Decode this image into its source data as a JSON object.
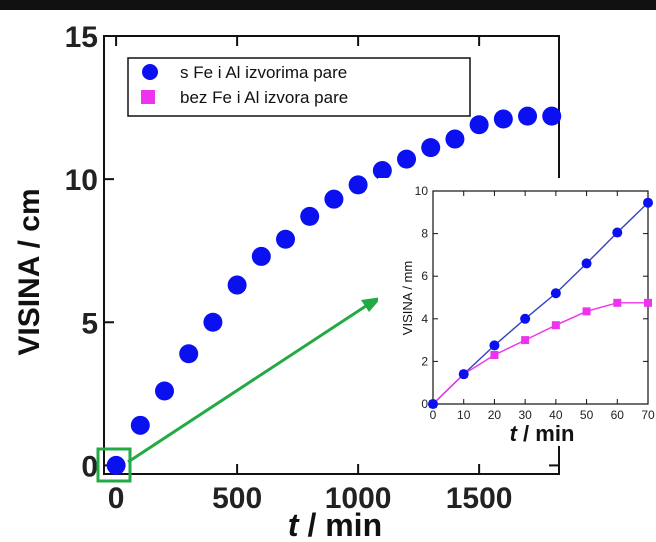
{
  "colors": {
    "series1": "#0a10f0",
    "series2": "#ee33ee",
    "arrow": "#22aa44",
    "topbar": "#111111",
    "inset_line": "#3344bb"
  },
  "chart_data": [
    {
      "type": "scatter",
      "xlabel_italic": "t",
      "xlabel_rest": " / min",
      "ylabel": "VISINA / cm",
      "xlim": [
        -50,
        1830
      ],
      "ylim": [
        -0.3,
        15
      ],
      "xticks": [
        0,
        500,
        1000,
        1500
      ],
      "yticks": [
        0,
        5,
        10,
        15
      ],
      "legend_position": "top-left",
      "series": [
        {
          "name": "s Fe i Al izvorima pare",
          "marker": "circle",
          "x": [
            0,
            100,
            200,
            300,
            400,
            500,
            600,
            700,
            800,
            900,
            1000,
            1100,
            1200,
            1300,
            1400,
            1500,
            1600,
            1700,
            1800
          ],
          "y": [
            0.0,
            1.4,
            2.6,
            3.9,
            5.0,
            6.3,
            7.3,
            7.9,
            8.7,
            9.3,
            9.8,
            10.3,
            10.7,
            11.1,
            11.4,
            11.9,
            12.1,
            12.2,
            12.2
          ]
        },
        {
          "name": "bez Fe i Al izvora pare",
          "marker": "square",
          "x": [],
          "y": []
        }
      ]
    },
    {
      "type": "line",
      "xlabel_italic": "t",
      "xlabel_rest": " / min",
      "ylabel": "VISINA / mm",
      "xlim": [
        0,
        70
      ],
      "ylim": [
        0,
        10
      ],
      "xticks": [
        0,
        10,
        20,
        30,
        40,
        50,
        60,
        70
      ],
      "yticks": [
        0,
        2,
        4,
        6,
        8,
        10
      ],
      "series": [
        {
          "marker": "circle",
          "x": [
            0,
            10,
            20,
            30,
            40,
            50,
            60,
            70
          ],
          "y": [
            0.0,
            1.4,
            2.75,
            4.0,
            5.2,
            6.6,
            8.05,
            9.45
          ]
        },
        {
          "marker": "square",
          "x": [
            0,
            10,
            20,
            30,
            40,
            50,
            60,
            70
          ],
          "y": [
            0.0,
            1.4,
            2.3,
            3.0,
            3.7,
            4.35,
            4.75,
            4.75
          ]
        }
      ]
    }
  ]
}
